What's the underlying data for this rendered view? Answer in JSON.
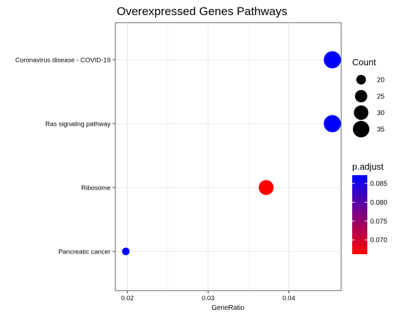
{
  "chart_data": {
    "type": "scatter",
    "title": "Overexpressed Genes Pathways",
    "xlabel": "GeneRatio",
    "ylabel": "",
    "xlim": [
      0.0185,
      0.0465
    ],
    "x_ticks": [
      {
        "value": 0.02,
        "label": "0.02"
      },
      {
        "value": 0.03,
        "label": "0.03"
      },
      {
        "value": 0.04,
        "label": "0.04"
      }
    ],
    "categories": [
      "Coronavirus disease - COVID-19",
      "Ras signaling pathway",
      "Ribosome",
      "Pancreatic cancer"
    ],
    "points": [
      {
        "category": "Coronavirus disease - COVID-19",
        "gene_ratio": 0.0454,
        "count": 37,
        "p_adjust": 0.0872
      },
      {
        "category": "Ras signaling pathway",
        "gene_ratio": 0.0454,
        "count": 37,
        "p_adjust": 0.0872
      },
      {
        "category": "Ribosome",
        "gene_ratio": 0.0372,
        "count": 31,
        "p_adjust": 0.0662
      },
      {
        "category": "Pancreatic cancer",
        "gene_ratio": 0.0198,
        "count": 17,
        "p_adjust": 0.0872
      }
    ],
    "grid": true,
    "size_legend": {
      "title": "Count",
      "entries": [
        20,
        25,
        30,
        35
      ]
    },
    "color_legend": {
      "title": "p.adjust",
      "min": 0.0662,
      "max": 0.0872,
      "low_color": "#ff0000",
      "high_color": "#0000ff",
      "ticks": [
        {
          "value": 0.07,
          "label": "0.070"
        },
        {
          "value": 0.075,
          "label": "0.075"
        },
        {
          "value": 0.08,
          "label": "0.080"
        },
        {
          "value": 0.085,
          "label": "0.085"
        }
      ]
    },
    "legend_placement": "right"
  }
}
